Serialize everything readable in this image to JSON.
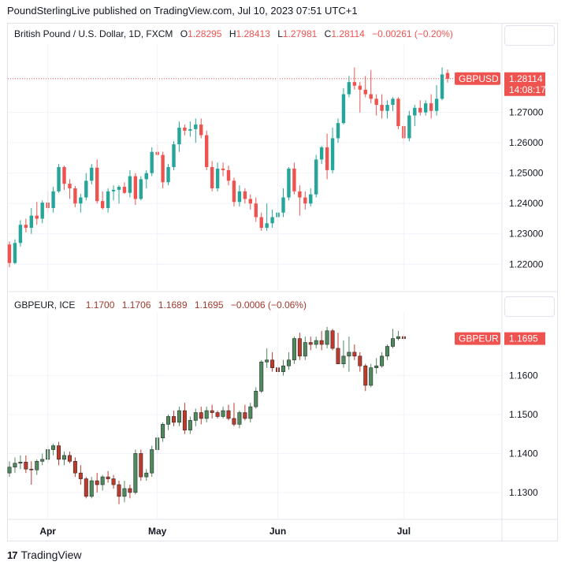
{
  "publisher": "PoundSterlingLive published on TradingView.com, Jul 10, 2023 07:51 UTC+1",
  "footer": {
    "logo_glyph": "17",
    "brand": "TradingView"
  },
  "colors": {
    "up": "#26a69a",
    "down": "#ef5350",
    "up2": "#4f8a5e",
    "down2": "#c0392b",
    "grid": "#f0f3fa",
    "axis_text": "#131722"
  },
  "chart_data": [
    {
      "type": "candlestick",
      "title": "British Pound / U.S. Dollar, 1D, FXCM",
      "legend": {
        "o_label": "O",
        "o": "1.28295",
        "h_label": "H",
        "h": "1.28413",
        "l_label": "L",
        "l": "1.27981",
        "c_label": "C",
        "c": "1.28114",
        "change": "−0.00261 (−0.20%)"
      },
      "ylim": [
        1.2115,
        1.2925
      ],
      "yticks": [
        "1.27000",
        "1.26000",
        "1.25000",
        "1.24000",
        "1.23000",
        "1.22000"
      ],
      "last_price_tag": {
        "symbol": "GBPUSD",
        "price": "1.28114",
        "countdown": "14:08:17",
        "value": 1.28114
      },
      "candles": [
        [
          1.2265,
          1.2275,
          1.219,
          1.2204
        ],
        [
          1.2204,
          1.2282,
          1.22,
          1.227
        ],
        [
          1.227,
          1.2345,
          1.2258,
          1.233
        ],
        [
          1.233,
          1.235,
          1.2305,
          1.232
        ],
        [
          1.232,
          1.2385,
          1.23,
          1.236
        ],
        [
          1.236,
          1.2405,
          1.233,
          1.235
        ],
        [
          1.235,
          1.241,
          1.2335,
          1.2403
        ],
        [
          1.2403,
          1.244,
          1.237,
          1.2385
        ],
        [
          1.2385,
          1.2455,
          1.237,
          1.244
        ],
        [
          1.244,
          1.253,
          1.2435,
          1.252
        ],
        [
          1.252,
          1.2525,
          1.2445,
          1.2465
        ],
        [
          1.2465,
          1.248,
          1.2415,
          1.245
        ],
        [
          1.245,
          1.2458,
          1.2388,
          1.24
        ],
        [
          1.24,
          1.2432,
          1.237,
          1.242
        ],
        [
          1.242,
          1.25,
          1.241,
          1.2475
        ],
        [
          1.2475,
          1.253,
          1.2463,
          1.2518
        ],
        [
          1.2518,
          1.2545,
          1.24,
          1.2408
        ],
        [
          1.2408,
          1.244,
          1.238,
          1.2385
        ],
        [
          1.2385,
          1.245,
          1.237,
          1.244
        ],
        [
          1.244,
          1.246,
          1.241,
          1.2445
        ],
        [
          1.2445,
          1.246,
          1.24,
          1.2455
        ],
        [
          1.2455,
          1.247,
          1.2432,
          1.2435
        ],
        [
          1.2435,
          1.251,
          1.242,
          1.249
        ],
        [
          1.249,
          1.25,
          1.2395,
          1.2415
        ],
        [
          1.2415,
          1.249,
          1.241,
          1.248
        ],
        [
          1.248,
          1.251,
          1.245,
          1.25
        ],
        [
          1.25,
          1.2585,
          1.249,
          1.257
        ],
        [
          1.257,
          1.2595,
          1.2555,
          1.256
        ],
        [
          1.256,
          1.257,
          1.245,
          1.247
        ],
        [
          1.247,
          1.253,
          1.246,
          1.252
        ],
        [
          1.252,
          1.2605,
          1.251,
          1.2595
        ],
        [
          1.2595,
          1.267,
          1.257,
          1.265
        ],
        [
          1.265,
          1.266,
          1.2625,
          1.264
        ],
        [
          1.264,
          1.267,
          1.262,
          1.2645
        ],
        [
          1.2645,
          1.268,
          1.26,
          1.266
        ],
        [
          1.266,
          1.268,
          1.2615,
          1.2625
        ],
        [
          1.2625,
          1.264,
          1.251,
          1.252
        ],
        [
          1.252,
          1.254,
          1.244,
          1.245
        ],
        [
          1.245,
          1.2535,
          1.244,
          1.2515
        ],
        [
          1.2515,
          1.2535,
          1.249,
          1.251
        ],
        [
          1.251,
          1.2525,
          1.246,
          1.2475
        ],
        [
          1.2475,
          1.2485,
          1.239,
          1.2405
        ],
        [
          1.2405,
          1.246,
          1.239,
          1.244
        ],
        [
          1.244,
          1.245,
          1.24,
          1.2415
        ],
        [
          1.2415,
          1.243,
          1.238,
          1.24
        ],
        [
          1.24,
          1.242,
          1.234,
          1.2355
        ],
        [
          1.2355,
          1.237,
          1.231,
          1.232
        ],
        [
          1.232,
          1.24,
          1.231,
          1.2335
        ],
        [
          1.2335,
          1.238,
          1.232,
          1.2355
        ],
        [
          1.2355,
          1.242,
          1.234,
          1.237
        ],
        [
          1.237,
          1.245,
          1.2355,
          1.242
        ],
        [
          1.242,
          1.252,
          1.241,
          1.2515
        ],
        [
          1.2515,
          1.2535,
          1.243,
          1.244
        ],
        [
          1.244,
          1.246,
          1.236,
          1.242
        ],
        [
          1.242,
          1.244,
          1.238,
          1.24
        ],
        [
          1.24,
          1.245,
          1.239,
          1.243
        ],
        [
          1.243,
          1.256,
          1.242,
          1.2545
        ],
        [
          1.2545,
          1.259,
          1.253,
          1.2585
        ],
        [
          1.2585,
          1.263,
          1.248,
          1.251
        ],
        [
          1.251,
          1.265,
          1.25,
          1.2615
        ],
        [
          1.2615,
          1.268,
          1.26,
          1.2665
        ],
        [
          1.2665,
          1.278,
          1.266,
          1.276
        ],
        [
          1.276,
          1.282,
          1.275,
          1.28
        ],
        [
          1.28,
          1.2848,
          1.2775,
          1.2788
        ],
        [
          1.2788,
          1.28,
          1.27,
          1.2775
        ],
        [
          1.2775,
          1.282,
          1.275,
          1.276
        ],
        [
          1.276,
          1.284,
          1.273,
          1.2745
        ],
        [
          1.2745,
          1.276,
          1.269,
          1.2725
        ],
        [
          1.2725,
          1.276,
          1.268,
          1.2705
        ],
        [
          1.2705,
          1.274,
          1.268,
          1.2725
        ],
        [
          1.2725,
          1.275,
          1.2705,
          1.2745
        ],
        [
          1.2745,
          1.275,
          1.2645,
          1.2655
        ],
        [
          1.2655,
          1.266,
          1.2595,
          1.2615
        ],
        [
          1.2615,
          1.2705,
          1.2605,
          1.269
        ],
        [
          1.269,
          1.2725,
          1.2655,
          1.2715
        ],
        [
          1.2715,
          1.274,
          1.269,
          1.27
        ],
        [
          1.27,
          1.274,
          1.269,
          1.273
        ],
        [
          1.273,
          1.276,
          1.268,
          1.2705
        ],
        [
          1.2705,
          1.279,
          1.269,
          1.2745
        ],
        [
          1.2745,
          1.2848,
          1.274,
          1.2825
        ],
        [
          1.283,
          1.2841,
          1.2798,
          1.2811
        ]
      ]
    },
    {
      "type": "candlestick",
      "title": "GBPEUR, ICE",
      "legend": {
        "o": "1.1700",
        "h": "1.1706",
        "l": "1.1689",
        "c": "1.1695",
        "change": "−0.0006 (−0.06%)"
      },
      "ylim": [
        1.1233,
        1.1763
      ],
      "yticks": [
        "1.1600",
        "1.1500",
        "1.1400",
        "1.1300"
      ],
      "last_price_tag": {
        "symbol": "GBPEUR",
        "price": "1.1695",
        "value": 1.1695
      },
      "candles": [
        [
          1.135,
          1.138,
          1.134,
          1.1365
        ],
        [
          1.1365,
          1.139,
          1.135,
          1.1375
        ],
        [
          1.1375,
          1.1395,
          1.136,
          1.1378
        ],
        [
          1.1378,
          1.1395,
          1.135,
          1.136
        ],
        [
          1.136,
          1.138,
          1.132,
          1.1358
        ],
        [
          1.1358,
          1.1385,
          1.1345,
          1.138
        ],
        [
          1.138,
          1.14,
          1.137,
          1.1385
        ],
        [
          1.1385,
          1.142,
          1.1375,
          1.141
        ],
        [
          1.141,
          1.1425,
          1.1395,
          1.142
        ],
        [
          1.142,
          1.143,
          1.137,
          1.1385
        ],
        [
          1.1385,
          1.1405,
          1.137,
          1.1395
        ],
        [
          1.1395,
          1.1405,
          1.1375,
          1.138
        ],
        [
          1.138,
          1.139,
          1.134,
          1.135
        ],
        [
          1.135,
          1.137,
          1.132,
          1.1335
        ],
        [
          1.1335,
          1.134,
          1.1285,
          1.129
        ],
        [
          1.129,
          1.134,
          1.1285,
          1.133
        ],
        [
          1.133,
          1.135,
          1.13,
          1.132
        ],
        [
          1.132,
          1.1345,
          1.1305,
          1.134
        ],
        [
          1.134,
          1.1355,
          1.1325,
          1.1335
        ],
        [
          1.1335,
          1.1345,
          1.131,
          1.132
        ],
        [
          1.132,
          1.133,
          1.127,
          1.129
        ],
        [
          1.129,
          1.133,
          1.1275,
          1.131
        ],
        [
          1.131,
          1.132,
          1.1285,
          1.13
        ],
        [
          1.13,
          1.141,
          1.1295,
          1.14
        ],
        [
          1.14,
          1.141,
          1.133,
          1.134
        ],
        [
          1.134,
          1.136,
          1.133,
          1.135
        ],
        [
          1.135,
          1.142,
          1.134,
          1.141
        ],
        [
          1.141,
          1.145,
          1.14,
          1.144
        ],
        [
          1.144,
          1.148,
          1.143,
          1.1475
        ],
        [
          1.1475,
          1.15,
          1.146,
          1.1495
        ],
        [
          1.1495,
          1.151,
          1.147,
          1.148
        ],
        [
          1.148,
          1.152,
          1.147,
          1.151
        ],
        [
          1.151,
          1.153,
          1.145,
          1.146
        ],
        [
          1.146,
          1.1495,
          1.145,
          1.1485
        ],
        [
          1.1485,
          1.1515,
          1.147,
          1.1505
        ],
        [
          1.1505,
          1.152,
          1.1475,
          1.149
        ],
        [
          1.149,
          1.152,
          1.148,
          1.151
        ],
        [
          1.151,
          1.1525,
          1.149,
          1.1505
        ],
        [
          1.1505,
          1.151,
          1.149,
          1.1495
        ],
        [
          1.1495,
          1.152,
          1.149,
          1.151
        ],
        [
          1.151,
          1.1525,
          1.1485,
          1.149
        ],
        [
          1.149,
          1.153,
          1.147,
          1.1475
        ],
        [
          1.1475,
          1.151,
          1.1465,
          1.1505
        ],
        [
          1.1505,
          1.1525,
          1.1485,
          1.149
        ],
        [
          1.149,
          1.153,
          1.148,
          1.152
        ],
        [
          1.152,
          1.157,
          1.1515,
          1.156
        ],
        [
          1.156,
          1.164,
          1.1555,
          1.1635
        ],
        [
          1.1635,
          1.167,
          1.162,
          1.164
        ],
        [
          1.164,
          1.166,
          1.161,
          1.162
        ],
        [
          1.162,
          1.164,
          1.16,
          1.161
        ],
        [
          1.161,
          1.164,
          1.16,
          1.1625
        ],
        [
          1.1625,
          1.166,
          1.1615,
          1.164
        ],
        [
          1.164,
          1.17,
          1.163,
          1.1695
        ],
        [
          1.1695,
          1.171,
          1.164,
          1.165
        ],
        [
          1.165,
          1.17,
          1.164,
          1.1685
        ],
        [
          1.1685,
          1.17,
          1.1665,
          1.168
        ],
        [
          1.168,
          1.17,
          1.167,
          1.169
        ],
        [
          1.169,
          1.1715,
          1.1665,
          1.168
        ],
        [
          1.168,
          1.1725,
          1.167,
          1.1715
        ],
        [
          1.1715,
          1.172,
          1.1665,
          1.167
        ],
        [
          1.167,
          1.171,
          1.163,
          1.163
        ],
        [
          1.163,
          1.169,
          1.162,
          1.165
        ],
        [
          1.165,
          1.17,
          1.161,
          1.166
        ],
        [
          1.166,
          1.168,
          1.164,
          1.165
        ],
        [
          1.165,
          1.166,
          1.161,
          1.1625
        ],
        [
          1.1625,
          1.163,
          1.156,
          1.1575
        ],
        [
          1.1575,
          1.163,
          1.157,
          1.162
        ],
        [
          1.162,
          1.1645,
          1.1605,
          1.1625
        ],
        [
          1.1625,
          1.166,
          1.162,
          1.165
        ],
        [
          1.165,
          1.168,
          1.164,
          1.1675
        ],
        [
          1.1675,
          1.172,
          1.167,
          1.1695
        ],
        [
          1.1695,
          1.1715,
          1.169,
          1.17
        ],
        [
          1.17,
          1.1706,
          1.1689,
          1.1695
        ]
      ]
    }
  ],
  "x_axis": {
    "labels": [
      "Apr",
      "May",
      "Jun",
      "Jul"
    ]
  }
}
